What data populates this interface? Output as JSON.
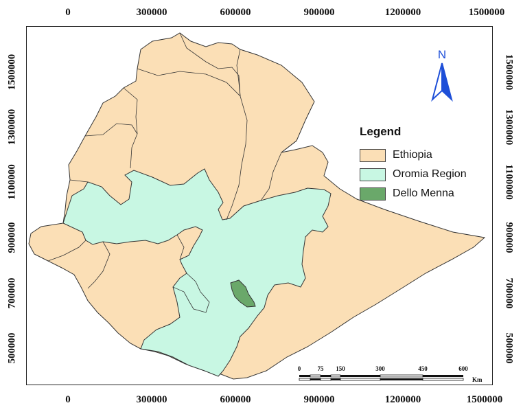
{
  "map": {
    "x_ticks_top": [
      "0",
      "300000",
      "600000",
      "900000",
      "1200000",
      "1500000"
    ],
    "x_ticks_bottom": [
      "0",
      "300000",
      "600000",
      "900000",
      "1200000",
      "1500000"
    ],
    "y_ticks_left": [
      "1500000",
      "1300000",
      "1100000",
      "900000",
      "700000",
      "500000"
    ],
    "y_ticks_right": [
      "1500000",
      "1300000",
      "1100000",
      "900000",
      "700000",
      "500000"
    ]
  },
  "legend": {
    "title": "Legend",
    "items": [
      {
        "label": "Ethiopia",
        "color": "#fbdfb6"
      },
      {
        "label": "Oromia Region",
        "color": "#c8f7e3"
      },
      {
        "label": "Dello Menna",
        "color": "#6aa86a"
      }
    ]
  },
  "north_arrow": {
    "label": "N",
    "color": "#1e4fd8"
  },
  "scale_bar": {
    "ticks": [
      "0",
      "75",
      "150",
      "300",
      "450",
      "600"
    ],
    "unit": "Km"
  },
  "colors": {
    "ethiopia": "#fbdfb6",
    "oromia": "#c8f7e3",
    "dello_menna": "#6aa86a",
    "boundary": "#333333"
  }
}
